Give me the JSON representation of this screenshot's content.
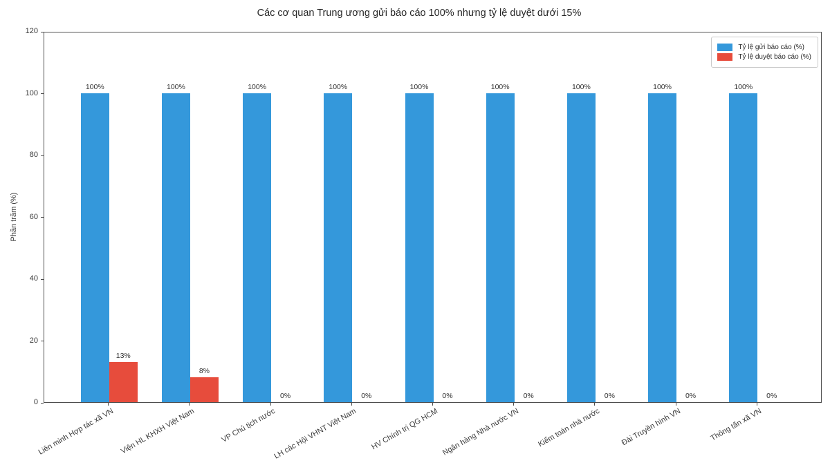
{
  "chart_data": {
    "type": "bar",
    "title": "Các cơ quan Trung ương gửi báo cáo 100% nhưng tỷ lệ duyệt dưới 15%",
    "ylabel": "Phần trăm (%)",
    "categories": [
      "Liên minh Hợp tác xã VN",
      "Viện HL KHXH Việt Nam",
      "VP Chủ tịch nước",
      "LH các Hội VHNT Việt Nam",
      "HV Chính trị QG HCM",
      "Ngân hàng Nhà nước VN",
      "Kiểm toán nhà nước",
      "Đài Truyền hình VN",
      "Thông tấn xã VN"
    ],
    "series": [
      {
        "name": "Tỷ lệ gửi báo cáo (%)",
        "color": "#3498db",
        "values": [
          100,
          100,
          100,
          100,
          100,
          100,
          100,
          100,
          100
        ]
      },
      {
        "name": "Tỷ lệ duyệt báo cáo (%)",
        "color": "#e74c3c",
        "values": [
          13,
          8,
          0,
          0,
          0,
          0,
          0,
          0,
          0
        ]
      }
    ],
    "value_label_suffix": "%",
    "yticks": [
      0,
      20,
      40,
      60,
      80,
      100,
      120
    ],
    "ylim": [
      0,
      120
    ],
    "bar_width_fraction": 0.35,
    "grid": false,
    "legend_position": "upper-right",
    "colors": {
      "background": "#ffffff",
      "axis_line": "#4d4d4d",
      "tick_text": "#3a3a3a",
      "title_text": "#262626",
      "value_label_text": "#303030",
      "legend_border": "#c9c9c9"
    }
  }
}
